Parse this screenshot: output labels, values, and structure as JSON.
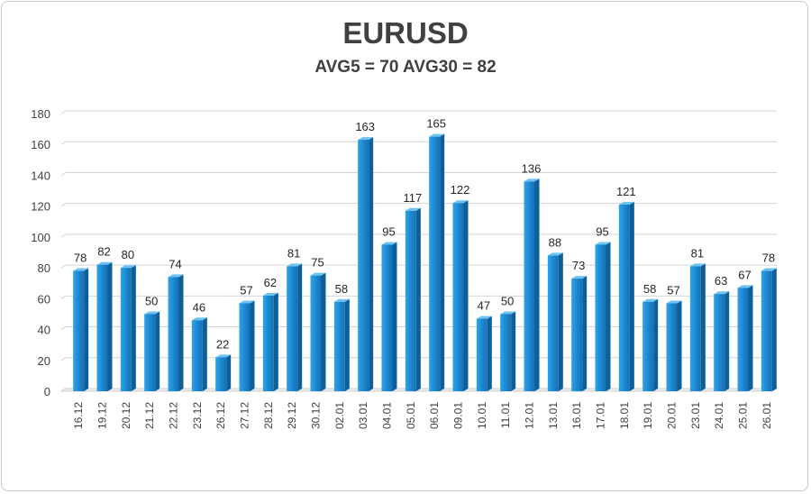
{
  "chart_data": {
    "type": "bar",
    "title": "EURUSD",
    "subtitle": "AVG5 = 70 AVG30 = 82",
    "xlabel": "",
    "ylabel": "",
    "ylim": [
      0,
      180
    ],
    "yticks": [
      0,
      20,
      40,
      60,
      80,
      100,
      120,
      140,
      160,
      180
    ],
    "grid": true,
    "bar_color": "#1f8fd6",
    "bar_color_dark": "#0d5f9a",
    "categories": [
      "16.12",
      "19.12",
      "20.12",
      "21.12",
      "22.12",
      "23.12",
      "26.12",
      "27.12",
      "28.12",
      "29.12",
      "30.12",
      "02.01",
      "03.01",
      "04.01",
      "05.01",
      "06.01",
      "09.01",
      "10.01",
      "11.01",
      "12.01",
      "13.01",
      "16.01",
      "17.01",
      "18.01",
      "19.01",
      "20.01",
      "23.01",
      "24.01",
      "25.01",
      "26.01"
    ],
    "values": [
      78,
      82,
      80,
      50,
      74,
      46,
      22,
      57,
      62,
      81,
      75,
      58,
      163,
      95,
      117,
      165,
      122,
      47,
      50,
      136,
      88,
      73,
      95,
      121,
      58,
      57,
      81,
      63,
      67,
      78
    ]
  }
}
